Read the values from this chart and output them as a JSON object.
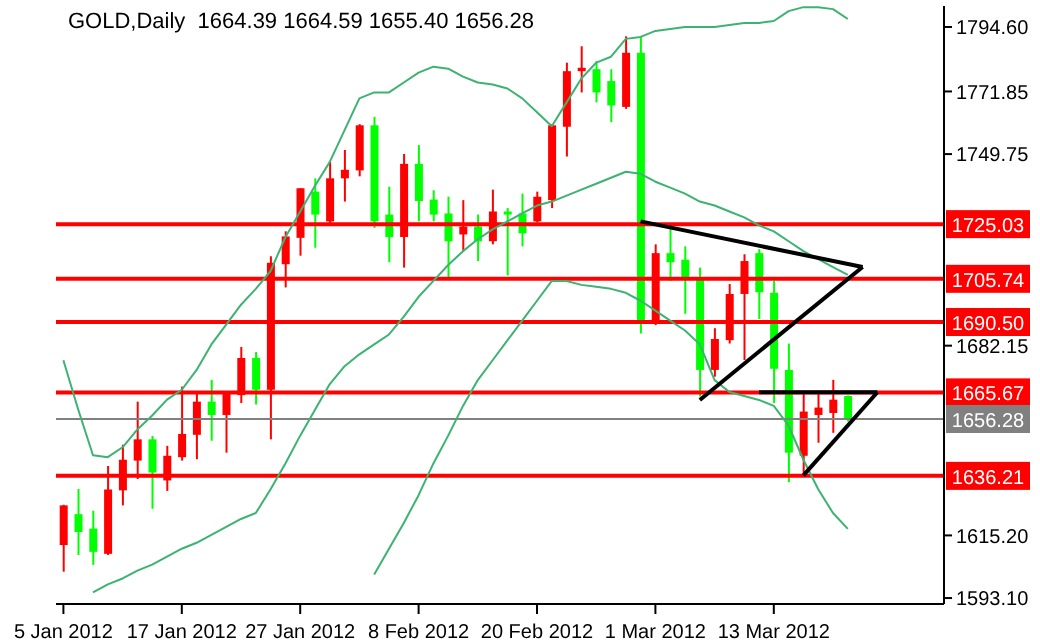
{
  "chart_data": {
    "type": "candlestick",
    "title": "GOLD,Daily  1664.39 1664.59 1655.40 1656.28",
    "categories": [
      "5 Jan 2012",
      null,
      null,
      null,
      null,
      null,
      null,
      null,
      "17 Jan 2012",
      null,
      null,
      null,
      null,
      null,
      null,
      null,
      "27 Jan 2012",
      null,
      null,
      null,
      null,
      null,
      null,
      null,
      "8 Feb 2012",
      null,
      null,
      null,
      null,
      null,
      null,
      null,
      "20 Feb 2012",
      null,
      null,
      null,
      null,
      null,
      null,
      null,
      "1 Mar 2012",
      null,
      null,
      null,
      null,
      null,
      null,
      null,
      "13 Mar 2012",
      null,
      null,
      null,
      null,
      null,
      null,
      null,
      null,
      null,
      null,
      null
    ],
    "ylim": [
      1591,
      1802
    ],
    "yticks": [
      {
        "value": 1593.1,
        "label": "1593.10"
      },
      {
        "value": 1615.2,
        "label": "1615.20"
      },
      {
        "value": 1682.15,
        "label": "1682.15"
      },
      {
        "value": 1749.75,
        "label": "1749.75"
      },
      {
        "value": 1771.85,
        "label": "1771.85"
      },
      {
        "value": 1794.6,
        "label": "1794.60"
      }
    ],
    "ref_lines": [
      {
        "axis": "y",
        "value": 1725.03,
        "label": "1725.03",
        "color": "#ff0000"
      },
      {
        "axis": "y",
        "value": 1705.74,
        "label": "1705.74",
        "color": "#ff0000"
      },
      {
        "axis": "y",
        "value": 1690.5,
        "label": "1690.50",
        "color": "#ff0000"
      },
      {
        "axis": "y",
        "value": 1665.67,
        "label": "1665.67",
        "color": "#ff0000"
      },
      {
        "axis": "y",
        "value": 1656.28,
        "label": "1656.28",
        "color": "#808080"
      },
      {
        "axis": "y",
        "value": 1636.21,
        "label": "1636.21",
        "color": "#ff0000"
      }
    ],
    "series": [
      {
        "type": "line",
        "color": "#3cb371",
        "values": [
          1677.0,
          1659.6,
          1643.5,
          1642.8,
          1646.3,
          1652.6,
          1657.5,
          1663.1,
          1666.6,
          1673.6,
          1682.6,
          1689.6,
          1696.6,
          1702.2,
          1708.5,
          1720.4,
          1729.5,
          1738.6,
          1747.0,
          1758.2,
          1769.4,
          1771.5,
          1771.5,
          1775.0,
          1778.5,
          1780.6,
          1779.9,
          1777.1,
          1775.0,
          1774.3,
          1772.9,
          1769.4,
          1764.5,
          1759.6,
          1768.0,
          1776.4,
          1782.0,
          1784.1,
          1790.4,
          1791.1,
          1793.2,
          1793.9,
          1794.6,
          1794.6,
          1794.6,
          1795.3,
          1796.0,
          1796.0,
          1796.7,
          1800.2,
          1801.6,
          1801.6,
          1800.9,
          1797.4,
          null,
          null,
          null,
          null,
          null,
          null
        ]
      },
      {
        "type": "line",
        "color": "#3cb371",
        "values": [
          null,
          null,
          1595.1,
          1597.9,
          1600.0,
          1602.8,
          1604.9,
          1607.7,
          1610.5,
          1612.6,
          1615.4,
          1618.2,
          1621.0,
          1623.1,
          1631.5,
          1640.6,
          1650.4,
          1659.5,
          1668.6,
          1674.9,
          1679.1,
          1682.6,
          1686.1,
          1692.4,
          1699.4,
          1705.0,
          1710.6,
          1715.5,
          1719.7,
          1723.2,
          1726.0,
          1728.8,
          1731.6,
          1733.0,
          1735.1,
          1737.2,
          1739.3,
          1741.4,
          1743.5,
          1742.8,
          1740.0,
          1737.9,
          1735.8,
          1733.0,
          1731.6,
          1729.5,
          1727.4,
          1724.6,
          1722.5,
          1719.0,
          1715.5,
          1712.7,
          1709.9,
          1707.1,
          null,
          null,
          null,
          null,
          null,
          null
        ]
      },
      {
        "type": "line",
        "color": "#3cb371",
        "values": [
          null,
          null,
          null,
          null,
          null,
          null,
          null,
          null,
          null,
          null,
          null,
          null,
          null,
          null,
          null,
          null,
          null,
          null,
          null,
          null,
          null,
          1601.4,
          1610.5,
          1619.6,
          1629.4,
          1640.6,
          1650.4,
          1660.9,
          1670.0,
          1677.0,
          1684.0,
          1691.0,
          1698.0,
          1705.0,
          1705.0,
          1703.6,
          1702.9,
          1702.2,
          1700.8,
          1698.0,
          1694.5,
          1691.0,
          1687.5,
          1682.6,
          1670.0,
          1665.8,
          1664.4,
          1663.0,
          1660.9,
          1653.9,
          1641.9,
          1631.5,
          1623.1,
          1617.5,
          null,
          null,
          null,
          null,
          null,
          null
        ]
      },
      {
        "type": "line",
        "color": "#000000",
        "values": [
          null,
          null,
          null,
          null,
          null,
          null,
          null,
          null,
          null,
          null,
          null,
          null,
          null,
          null,
          null,
          null,
          null,
          null,
          null,
          null,
          null,
          null,
          null,
          null,
          null,
          null,
          null,
          null,
          null,
          null,
          null,
          null,
          null,
          null,
          null,
          null,
          null,
          null,
          null,
          1726.0,
          null,
          null,
          null,
          null,
          null,
          null,
          null,
          null,
          null,
          null,
          null,
          null,
          null,
          null,
          1709.9,
          null,
          null,
          null,
          null,
          null
        ]
      },
      {
        "type": "line",
        "color": "#000000",
        "values": [
          null,
          null,
          null,
          null,
          null,
          null,
          null,
          null,
          null,
          null,
          null,
          null,
          null,
          null,
          null,
          null,
          null,
          null,
          null,
          null,
          null,
          null,
          null,
          null,
          null,
          null,
          null,
          null,
          null,
          null,
          null,
          null,
          null,
          null,
          null,
          null,
          null,
          null,
          null,
          null,
          null,
          null,
          null,
          1663.0,
          null,
          null,
          null,
          null,
          null,
          null,
          null,
          null,
          null,
          null,
          1709.9,
          null,
          null,
          null,
          null,
          null
        ]
      },
      {
        "type": "line",
        "color": "#000000",
        "values": [
          null,
          null,
          null,
          null,
          null,
          null,
          null,
          null,
          null,
          null,
          null,
          null,
          null,
          null,
          null,
          null,
          null,
          null,
          null,
          null,
          null,
          null,
          null,
          null,
          null,
          null,
          null,
          null,
          null,
          null,
          null,
          null,
          null,
          null,
          null,
          null,
          null,
          null,
          null,
          null,
          null,
          null,
          null,
          null,
          null,
          null,
          null,
          1665.7,
          null,
          null,
          null,
          null,
          null,
          null,
          null,
          1665.7,
          null,
          null,
          null,
          null
        ]
      },
      {
        "type": "line",
        "color": "#000000",
        "values": [
          null,
          null,
          null,
          null,
          null,
          null,
          null,
          null,
          null,
          null,
          null,
          null,
          null,
          null,
          null,
          null,
          null,
          null,
          null,
          null,
          null,
          null,
          null,
          null,
          null,
          null,
          null,
          null,
          null,
          null,
          null,
          null,
          null,
          null,
          null,
          null,
          null,
          null,
          null,
          null,
          null,
          null,
          null,
          null,
          null,
          null,
          null,
          null,
          null,
          null,
          1636.4,
          null,
          null,
          null,
          null,
          1665.7,
          null,
          null,
          null,
          null
        ]
      },
      {
        "ohlc": [
          [
            1611.8,
            1626.0,
            1602.4,
            1625.8
          ],
          [
            1622.7,
            1631.6,
            1608.3,
            1616.4
          ],
          [
            1617.6,
            1623.9,
            1604.8,
            1609.4
          ],
          [
            1608.7,
            1639.7,
            1608.3,
            1631.4
          ],
          [
            1631.1,
            1647.2,
            1625.8,
            1641.9
          ],
          [
            1641.6,
            1662.4,
            1635.1,
            1649.1
          ],
          [
            1649.1,
            1650.3,
            1624.6,
            1637.4
          ],
          [
            1634.6,
            1646.8,
            1630.9,
            1643.3
          ],
          [
            1642.8,
            1667.7,
            1641.6,
            1651.0
          ],
          [
            1650.7,
            1665.4,
            1642.1,
            1662.4
          ],
          [
            1662.4,
            1670.1,
            1648.6,
            1657.7
          ],
          [
            1657.7,
            1665.9,
            1644.4,
            1665.9
          ],
          [
            1664.7,
            1681.7,
            1661.9,
            1677.8
          ],
          [
            1677.8,
            1679.9,
            1661.4,
            1666.6
          ],
          [
            1666.6,
            1713.7,
            1649.1,
            1711.4
          ],
          [
            1710.9,
            1722.5,
            1702.7,
            1720.7
          ],
          [
            1720.2,
            1737.7,
            1713.9,
            1737.7
          ],
          [
            1736.5,
            1741.2,
            1716.7,
            1728.4
          ],
          [
            1726.0,
            1747.0,
            1724.9,
            1741.2
          ],
          [
            1741.2,
            1751.2,
            1733.0,
            1744.2
          ],
          [
            1744.0,
            1760.3,
            1741.9,
            1759.9
          ],
          [
            1759.9,
            1762.9,
            1723.7,
            1726.0
          ],
          [
            1728.4,
            1738.2,
            1711.6,
            1720.5
          ],
          [
            1720.5,
            1749.8,
            1709.7,
            1746.3
          ],
          [
            1746.3,
            1752.9,
            1726.0,
            1733.2
          ],
          [
            1733.7,
            1737.0,
            1726.0,
            1728.4
          ],
          [
            1728.8,
            1734.7,
            1706.2,
            1719.0
          ],
          [
            1721.4,
            1733.5,
            1715.5,
            1724.2
          ],
          [
            1724.2,
            1728.4,
            1712.0,
            1719.0
          ],
          [
            1719.0,
            1737.2,
            1717.9,
            1729.5
          ],
          [
            1729.5,
            1730.7,
            1706.9,
            1728.4
          ],
          [
            1728.8,
            1735.8,
            1717.2,
            1721.8
          ],
          [
            1726.0,
            1736.5,
            1725.6,
            1734.7
          ],
          [
            1733.5,
            1760.3,
            1730.7,
            1759.9
          ],
          [
            1759.4,
            1782.0,
            1748.9,
            1779.0
          ],
          [
            1779.0,
            1787.8,
            1771.5,
            1780.2
          ],
          [
            1779.7,
            1782.5,
            1768.0,
            1771.5
          ],
          [
            1775.5,
            1779.7,
            1761.0,
            1766.9
          ],
          [
            1766.4,
            1791.3,
            1765.7,
            1785.5
          ],
          [
            1785.5,
            1791.3,
            1686.4,
            1691.0
          ],
          [
            1691.0,
            1717.9,
            1689.4,
            1714.8
          ],
          [
            1714.8,
            1723.7,
            1705.0,
            1711.6
          ],
          [
            1712.5,
            1717.2,
            1693.4,
            1706.2
          ],
          [
            1706.2,
            1709.7,
            1664.2,
            1673.6
          ],
          [
            1673.6,
            1688.3,
            1671.2,
            1684.5
          ],
          [
            1684.1,
            1703.9,
            1682.9,
            1700.4
          ],
          [
            1700.4,
            1714.4,
            1677.1,
            1712.0
          ],
          [
            1714.8,
            1716.2,
            1691.5,
            1701.0
          ],
          [
            1700.8,
            1705.0,
            1661.9,
            1674.0
          ],
          [
            1673.6,
            1682.9,
            1634.0,
            1644.4
          ],
          [
            1643.3,
            1665.4,
            1637.0,
            1658.9
          ],
          [
            1657.7,
            1665.4,
            1647.9,
            1660.3
          ],
          [
            1658.4,
            1670.1,
            1651.4,
            1663.1
          ],
          [
            1664.39,
            1664.59,
            1655.4,
            1656.28
          ],
          null,
          null,
          null,
          null,
          null,
          null
        ],
        "colors": [
          "#ff0000",
          "#00ff00",
          "#00ff00",
          "#ff0000",
          "#ff0000",
          "#ff0000",
          "#00ff00",
          "#ff0000",
          "#ff0000",
          "#ff0000",
          "#00ff00",
          "#ff0000",
          "#ff0000",
          "#00ff00",
          "#ff0000",
          "#ff0000",
          "#ff0000",
          "#00ff00",
          "#ff0000",
          "#ff0000",
          "#ff0000",
          "#00ff00",
          "#00ff00",
          "#ff0000",
          "#00ff00",
          "#00ff00",
          "#00ff00",
          "#ff0000",
          "#00ff00",
          "#ff0000",
          "#00ff00",
          "#00ff00",
          "#ff0000",
          "#ff0000",
          "#ff0000",
          "#ff0000",
          "#00ff00",
          "#00ff00",
          "#ff0000",
          "#00ff00",
          "#ff0000",
          "#00ff00",
          "#00ff00",
          "#00ff00",
          "#ff0000",
          "#ff0000",
          "#ff0000",
          "#00ff00",
          "#00ff00",
          "#00ff00",
          "#ff0000",
          "#ff0000",
          "#ff0000",
          "#00ff00",
          null,
          null,
          null,
          null,
          null,
          null
        ]
      }
    ]
  }
}
